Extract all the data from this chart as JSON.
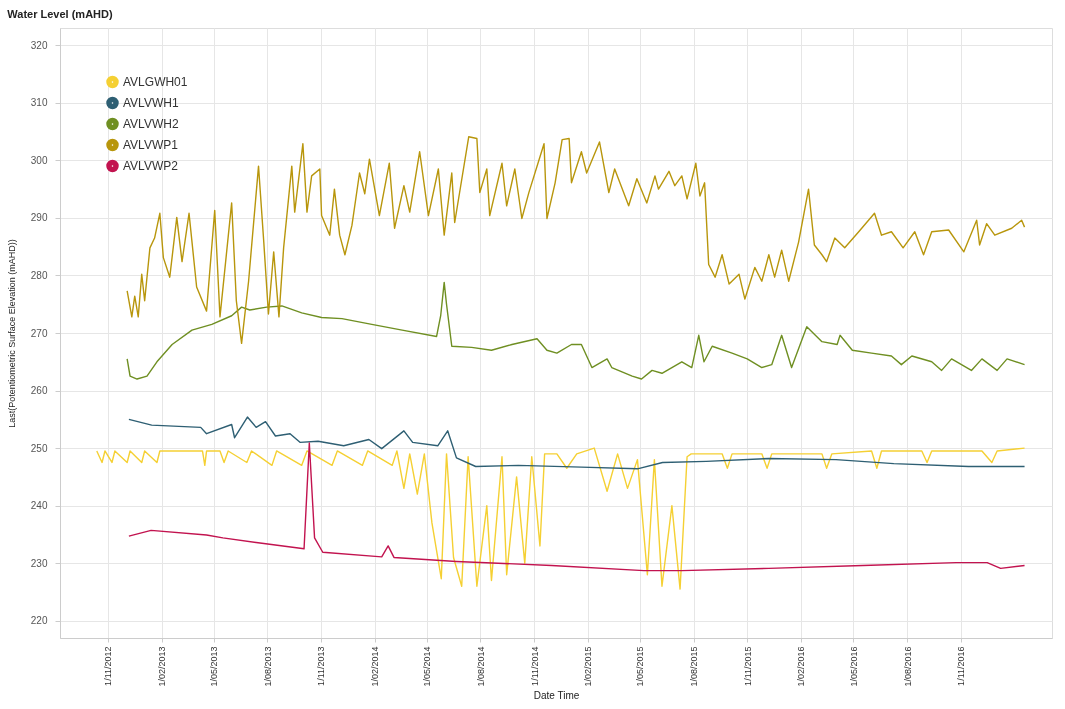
{
  "chart_data": {
    "type": "line",
    "title": "Water Level (mAHD)",
    "xlabel": "Date Time",
    "ylabel": "Last(Potentiometric Surface Elevation (mAHD))",
    "legend": "top left",
    "grid": true,
    "xlim": [
      "2012-08-11",
      "2017-04-06"
    ],
    "ylim": [
      217,
      323
    ],
    "xticks": [
      {
        "value": "2012-11-01",
        "label": "1/11/2012"
      },
      {
        "value": "2013-02-01",
        "label": "1/02/2013"
      },
      {
        "value": "2013-05-01",
        "label": "1/05/2013"
      },
      {
        "value": "2013-08-01",
        "label": "1/08/2013"
      },
      {
        "value": "2013-11-01",
        "label": "1/11/2013"
      },
      {
        "value": "2014-02-01",
        "label": "1/02/2014"
      },
      {
        "value": "2014-05-01",
        "label": "1/05/2014"
      },
      {
        "value": "2014-08-01",
        "label": "1/08/2014"
      },
      {
        "value": "2014-11-01",
        "label": "1/11/2014"
      },
      {
        "value": "2015-02-01",
        "label": "1/02/2015"
      },
      {
        "value": "2015-05-01",
        "label": "1/05/2015"
      },
      {
        "value": "2015-08-01",
        "label": "1/08/2015"
      },
      {
        "value": "2015-11-01",
        "label": "1/11/2015"
      },
      {
        "value": "2016-02-01",
        "label": "1/02/2016"
      },
      {
        "value": "2016-05-01",
        "label": "1/05/2016"
      },
      {
        "value": "2016-08-01",
        "label": "1/08/2016"
      },
      {
        "value": "2016-11-01",
        "label": "1/11/2016"
      }
    ],
    "yticks": [
      220,
      230,
      240,
      250,
      260,
      270,
      280,
      290,
      300,
      310,
      320
    ],
    "series": [
      {
        "name": "AVLGWH01",
        "color": "#f5d033",
        "x": [
          "2012-10-13",
          "2012-10-22",
          "2012-10-27",
          "2012-11-08",
          "2012-11-13",
          "2012-12-04",
          "2012-12-09",
          "2012-12-29",
          "2013-01-03",
          "2013-01-24",
          "2013-01-29",
          "2013-04-12",
          "2013-04-16",
          "2013-04-19",
          "2013-05-12",
          "2013-05-19",
          "2013-05-26",
          "2013-06-27",
          "2013-07-05",
          "2013-08-09",
          "2013-08-17",
          "2013-09-29",
          "2013-10-08",
          "2013-11-20",
          "2013-11-29",
          "2014-01-11",
          "2014-01-20",
          "2014-03-03",
          "2014-03-11",
          "2014-03-23",
          "2014-04-02",
          "2014-04-15",
          "2014-04-27",
          "2014-05-10",
          "2014-05-26",
          "2014-06-04",
          "2014-06-16",
          "2014-06-30",
          "2014-07-11",
          "2014-07-26",
          "2014-08-12",
          "2014-08-20",
          "2014-09-07",
          "2014-09-15",
          "2014-10-02",
          "2014-10-16",
          "2014-10-28",
          "2014-11-11",
          "2014-11-19",
          "2014-12-10",
          "2014-12-27",
          "2015-01-13",
          "2015-02-12",
          "2015-03-06",
          "2015-03-24",
          "2015-04-10",
          "2015-04-27",
          "2015-05-14",
          "2015-05-26",
          "2015-06-08",
          "2015-06-25",
          "2015-07-09",
          "2015-07-21",
          "2015-07-28",
          "2015-09-19",
          "2015-09-28",
          "2015-10-06",
          "2015-11-26",
          "2015-12-05",
          "2015-12-13",
          "2016-03-08",
          "2016-03-16",
          "2016-03-25",
          "2016-06-01",
          "2016-06-10",
          "2016-06-18",
          "2016-08-26",
          "2016-09-04",
          "2016-09-12",
          "2016-12-07",
          "2016-12-24",
          "2017-01-02",
          "2017-02-18"
        ],
        "values": [
          249.5,
          247.5,
          249.5,
          247.5,
          249.5,
          247.5,
          249.5,
          247.5,
          249.5,
          247.5,
          249.5,
          249.5,
          247,
          249.5,
          249.5,
          247.5,
          249.5,
          247.5,
          249.5,
          247,
          249.5,
          247,
          249.5,
          247,
          249.5,
          247,
          249.5,
          247,
          249.5,
          243,
          249,
          242,
          249,
          237,
          227.3,
          249,
          231,
          226,
          248.5,
          226,
          240,
          227,
          248.5,
          228,
          245,
          230,
          248.5,
          233,
          249,
          249,
          246.5,
          249,
          250,
          242.5,
          249,
          243,
          248,
          228,
          248,
          226,
          240,
          225.5,
          248.5,
          249,
          249,
          246.5,
          249,
          249,
          246.5,
          249,
          249,
          246.5,
          249,
          249.5,
          246.5,
          249.5,
          249.5,
          247.5,
          249.5,
          249.5,
          247.5,
          249.5,
          250
        ]
      },
      {
        "name": "AVLVWH1",
        "color": "#2e5f73",
        "x": [
          "2012-12-07",
          "2013-01-15",
          "2013-04-09",
          "2013-04-19",
          "2013-06-01",
          "2013-06-06",
          "2013-06-28",
          "2013-07-13",
          "2013-07-29",
          "2013-08-15",
          "2013-09-09",
          "2013-09-26",
          "2013-10-27",
          "2013-12-10",
          "2014-01-22",
          "2014-02-13",
          "2014-03-23",
          "2014-04-07",
          "2014-05-20",
          "2014-06-06",
          "2014-06-21",
          "2014-07-24",
          "2014-10-05",
          "2015-01-21",
          "2015-04-27",
          "2015-06-09",
          "2015-08-23",
          "2015-12-08",
          "2016-04-01",
          "2016-07-09",
          "2016-11-14",
          "2017-02-18"
        ],
        "values": [
          255,
          254,
          253.6,
          252.5,
          254.1,
          251.8,
          255.4,
          253.6,
          254.6,
          252.1,
          252.5,
          251,
          251.2,
          250.4,
          251.5,
          249.9,
          253,
          251,
          250.4,
          253,
          248.3,
          246.8,
          247,
          246.7,
          246.4,
          247.5,
          247.7,
          248.2,
          248,
          247.3,
          246.8,
          246.8
        ]
      },
      {
        "name": "AVLVWH2",
        "color": "#6f8f22",
        "x": [
          "2012-12-04",
          "2012-12-09",
          "2012-12-21",
          "2013-01-07",
          "2013-01-24",
          "2013-02-19",
          "2013-03-25",
          "2013-04-28",
          "2013-06-01",
          "2013-06-18",
          "2013-07-02",
          "2013-07-31",
          "2013-08-26",
          "2013-09-29",
          "2013-11-02",
          "2013-12-07",
          "2014-01-27",
          "2014-03-20",
          "2014-05-18",
          "2014-05-25",
          "2014-05-31",
          "2014-06-04",
          "2014-06-13",
          "2014-07-17",
          "2014-08-20",
          "2014-09-24",
          "2014-11-06",
          "2014-11-23",
          "2014-12-10",
          "2015-01-04",
          "2015-01-21",
          "2015-02-08",
          "2015-03-06",
          "2015-03-14",
          "2015-04-18",
          "2015-05-04",
          "2015-05-22",
          "2015-06-08",
          "2015-06-25",
          "2015-07-12",
          "2015-07-29",
          "2015-08-10",
          "2015-08-19",
          "2015-09-02",
          "2015-10-06",
          "2015-11-01",
          "2015-11-26",
          "2015-12-13",
          "2015-12-30",
          "2016-01-16",
          "2016-02-11",
          "2016-03-08",
          "2016-04-03",
          "2016-04-08",
          "2016-04-29",
          "2016-06-01",
          "2016-07-05",
          "2016-07-22",
          "2016-08-09",
          "2016-09-12",
          "2016-09-29",
          "2016-10-16",
          "2016-11-19",
          "2016-12-07",
          "2017-01-02",
          "2017-01-19",
          "2017-02-18"
        ],
        "values": [
          265.5,
          262.5,
          262,
          262.5,
          265,
          268,
          270.5,
          271.5,
          273,
          274.5,
          274,
          274.5,
          274.7,
          273.5,
          272.7,
          272.5,
          271.5,
          270.5,
          269.4,
          273,
          278.8,
          275,
          267.7,
          267.5,
          267,
          268,
          269,
          267,
          266.5,
          268,
          268,
          264,
          265.5,
          264,
          262.5,
          262,
          263.5,
          263,
          264,
          265,
          264,
          269.6,
          265,
          267.7,
          266.5,
          265.5,
          264,
          264.5,
          269.6,
          264,
          271.1,
          268.5,
          268,
          269.6,
          267,
          266.5,
          266,
          264.5,
          266,
          265,
          263.5,
          265.5,
          263.5,
          265.5,
          263.5,
          265.5,
          264.5
        ]
      },
      {
        "name": "AVLVWP1",
        "color": "#b8960c",
        "x": [
          "2012-12-04",
          "2012-12-12",
          "2012-12-17",
          "2012-12-23",
          "2012-12-29",
          "2013-01-03",
          "2013-01-12",
          "2013-01-20",
          "2013-01-29",
          "2013-02-04",
          "2013-02-15",
          "2013-02-27",
          "2013-03-08",
          "2013-03-20",
          "2013-04-02",
          "2013-04-19",
          "2013-05-03",
          "2013-05-12",
          "2013-06-01",
          "2013-06-09",
          "2013-06-18",
          "2013-06-30",
          "2013-07-17",
          "2013-07-26",
          "2013-08-03",
          "2013-08-12",
          "2013-08-21",
          "2013-08-29",
          "2013-09-12",
          "2013-09-17",
          "2013-10-01",
          "2013-10-08",
          "2013-10-16",
          "2013-10-30",
          "2013-11-02",
          "2013-11-16",
          "2013-11-24",
          "2013-12-03",
          "2013-12-12",
          "2013-12-24",
          "2014-01-06",
          "2014-01-15",
          "2014-01-23",
          "2014-02-09",
          "2014-02-26",
          "2014-03-07",
          "2014-03-23",
          "2014-04-02",
          "2014-04-19",
          "2014-05-04",
          "2014-05-21",
          "2014-05-31",
          "2014-06-13",
          "2014-06-18",
          "2014-07-12",
          "2014-07-26",
          "2014-07-31",
          "2014-08-12",
          "2014-08-17",
          "2014-09-07",
          "2014-09-15",
          "2014-09-29",
          "2014-10-11",
          "2014-10-23",
          "2014-11-18",
          "2014-11-23",
          "2014-12-07",
          "2014-12-19",
          "2014-12-31",
          "2015-01-04",
          "2015-01-21",
          "2015-01-30",
          "2015-02-21",
          "2015-03-09",
          "2015-03-19",
          "2015-04-12",
          "2015-04-26",
          "2015-05-13",
          "2015-05-27",
          "2015-06-02",
          "2015-06-20",
          "2015-06-30",
          "2015-07-12",
          "2015-07-21",
          "2015-08-05",
          "2015-08-12",
          "2015-08-20",
          "2015-08-27",
          "2015-09-07",
          "2015-09-19",
          "2015-10-01",
          "2015-10-18",
          "2015-10-28",
          "2015-11-14",
          "2015-11-26",
          "2015-12-08",
          "2015-12-18",
          "2015-12-30",
          "2016-01-11",
          "2016-01-28",
          "2016-02-14",
          "2016-02-24",
          "2016-03-08",
          "2016-03-16",
          "2016-03-30",
          "2016-04-16",
          "2016-05-10",
          "2016-06-06",
          "2016-06-18",
          "2016-07-05",
          "2016-07-25",
          "2016-08-14",
          "2016-08-29",
          "2016-09-12",
          "2016-10-11",
          "2016-11-06",
          "2016-11-28",
          "2016-12-03",
          "2016-12-15",
          "2016-12-29",
          "2017-01-27",
          "2017-02-13",
          "2017-02-18"
        ],
        "values": [
          277.3,
          272.8,
          276.4,
          272.8,
          280.2,
          275.6,
          284.8,
          286.5,
          290.8,
          283.1,
          279.7,
          290.1,
          282.4,
          290.8,
          278,
          273.8,
          291.3,
          272.8,
          292.6,
          275.6,
          268.2,
          279,
          299,
          285.8,
          273.3,
          284.1,
          272.8,
          284.8,
          299,
          291,
          302.9,
          291,
          297.3,
          298.5,
          290.4,
          287,
          295,
          287,
          283.6,
          288.7,
          297.8,
          294.2,
          300.2,
          290.4,
          299.5,
          288.2,
          295.6,
          291,
          301.5,
          290.4,
          298.5,
          287,
          297.8,
          289.2,
          304.1,
          303.8,
          294.4,
          298.5,
          290.4,
          299.5,
          292.1,
          298.5,
          289.9,
          294.4,
          302.9,
          289.9,
          296.1,
          303.6,
          303.8,
          296.1,
          301.5,
          297.8,
          303.2,
          294.4,
          298.5,
          292.1,
          296.8,
          292.6,
          297.3,
          295,
          298.1,
          295.6,
          297.3,
          293.3,
          299.5,
          293.8,
          296.1,
          281.9,
          279.7,
          283.6,
          278.5,
          280.2,
          275.9,
          281.4,
          279,
          283.6,
          279.7,
          284.4,
          279,
          285.8,
          295,
          285.3,
          283.6,
          282.4,
          286.5,
          284.8,
          287.6,
          290.8,
          287,
          287.6,
          284.8,
          287.6,
          283.6,
          287.6,
          287.9,
          284.1,
          289.6,
          285.3,
          289,
          287,
          288.2,
          289.6,
          288.4
        ]
      },
      {
        "name": "AVLVWP2",
        "color": "#c2134f",
        "x": [
          "2012-12-07",
          "2013-01-14",
          "2013-04-19",
          "2013-05-17",
          "2013-07-13",
          "2013-10-03",
          "2013-10-12",
          "2013-10-21",
          "2013-11-04",
          "2014-02-13",
          "2014-02-24",
          "2014-03-06",
          "2014-06-21",
          "2014-12-01",
          "2015-05-08",
          "2015-07-12",
          "2015-12-08",
          "2016-05-17",
          "2016-10-24",
          "2016-12-16",
          "2017-01-08",
          "2017-02-18"
        ],
        "values": [
          234.7,
          235.7,
          234.9,
          234.4,
          233.6,
          232.5,
          250.9,
          234.4,
          231.9,
          231.1,
          233,
          231,
          230.3,
          229.6,
          228.7,
          228.7,
          229.1,
          229.6,
          230.1,
          230.1,
          229.1,
          229.6
        ]
      }
    ]
  }
}
